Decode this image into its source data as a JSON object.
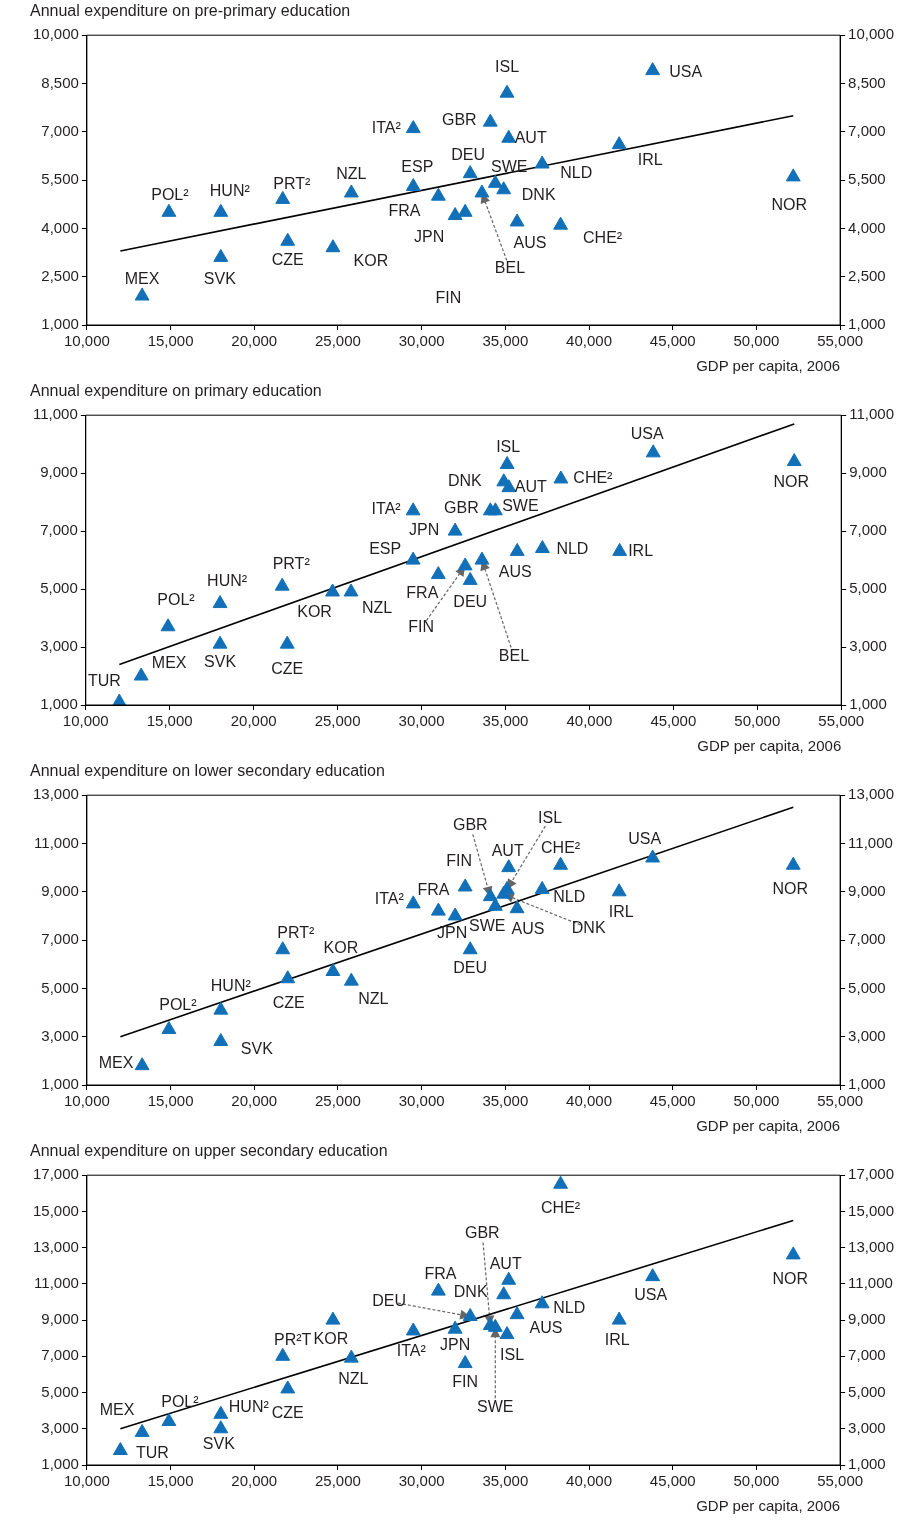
{
  "chart_data": [
    {
      "type": "scatter",
      "title": "Annual expenditure on pre-primary education",
      "xlabel": "GDP per capita, 2006",
      "xlim": [
        10000,
        55000
      ],
      "xticks": [
        {
          "value": 10000,
          "label": "10,000"
        },
        {
          "value": 15000,
          "label": "15,000"
        },
        {
          "value": 20000,
          "label": "20,000"
        },
        {
          "value": 25000,
          "label": "25,000"
        },
        {
          "value": 30000,
          "label": "30,000"
        },
        {
          "value": 35000,
          "label": "35,000"
        },
        {
          "value": 40000,
          "label": "40,000"
        },
        {
          "value": 45000,
          "label": "45,000"
        },
        {
          "value": 50000,
          "label": "50,000"
        },
        {
          "value": 55000,
          "label": "55,000"
        }
      ],
      "ylim": [
        1000,
        10000
      ],
      "yticks": [
        {
          "value": 1000,
          "label": "1,000"
        },
        {
          "value": 2500,
          "label": "2,500"
        },
        {
          "value": 4000,
          "label": "4,000"
        },
        {
          "value": 5500,
          "label": "5,500"
        },
        {
          "value": 7000,
          "label": "7,000"
        },
        {
          "value": 8500,
          "label": "8,500"
        },
        {
          "value": 10000,
          "label": "10,000"
        }
      ],
      "y2lim": [
        1000,
        10000
      ],
      "y2ticks": [
        {
          "value": 1000,
          "label": "1,000"
        },
        {
          "value": 2500,
          "label": "2,500"
        },
        {
          "value": 4000,
          "label": "4,000"
        },
        {
          "value": 5500,
          "label": "5,500"
        },
        {
          "value": 7000,
          "label": "7,000"
        },
        {
          "value": 8500,
          "label": "8,500"
        },
        {
          "value": 10000,
          "label": "10,000"
        }
      ],
      "series": [
        {
          "marker": "triangle",
          "color": "#1270b8",
          "x": [
            13300,
            14900,
            18000,
            18000,
            21700,
            22000,
            24700,
            25800,
            29500,
            29500,
            31000,
            32000,
            32600,
            32900,
            33600,
            34100,
            34400,
            34900,
            35100,
            35200,
            35700,
            37200,
            38300,
            41800,
            43800,
            52200
          ],
          "values": [
            1900,
            4500,
            4500,
            3100,
            4900,
            3600,
            3400,
            5100,
            7100,
            5300,
            5000,
            4400,
            4500,
            5700,
            5100,
            7300,
            5400,
            5200,
            8200,
            6800,
            4200,
            6000,
            4100,
            6600,
            8900,
            5600
          ]
        },
        {
          "type": "line",
          "color": "#000000",
          "x": [
            12000,
            52200
          ],
          "values": [
            3300,
            7500
          ]
        }
      ],
      "annotations": [
        {
          "text": "MEX",
          "x": 13300,
          "y": 1900
        },
        {
          "text": "POL²",
          "x": 14900,
          "y": 4500
        },
        {
          "text": "HUN²",
          "x": 18000,
          "y": 4500
        },
        {
          "text": "SVK",
          "x": 18000,
          "y": 3100
        },
        {
          "text": "PRT²",
          "x": 21700,
          "y": 4900
        },
        {
          "text": "CZE",
          "x": 22000,
          "y": 3600
        },
        {
          "text": "KOR",
          "x": 24700,
          "y": 3400
        },
        {
          "text": "NZL",
          "x": 25800,
          "y": 5100
        },
        {
          "text": "ITA²",
          "x": 29500,
          "y": 7100
        },
        {
          "text": "ESP",
          "x": 29500,
          "y": 5300
        },
        {
          "text": "FRA",
          "x": 31000,
          "y": 5000
        },
        {
          "text": "JPN",
          "x": 32000,
          "y": 4400
        },
        "FIN",
        {
          "text": "DEU",
          "x": 32900,
          "y": 5700
        },
        {
          "text": "BEL",
          "x": 33600,
          "y": 5100
        },
        {
          "text": "GBR",
          "x": 34100,
          "y": 7300
        },
        {
          "text": "SWE",
          "x": 34400,
          "y": 5400
        },
        {
          "text": "DNK",
          "x": 34900,
          "y": 5200
        },
        {
          "text": "ISL",
          "x": 35100,
          "y": 8200
        },
        {
          "text": "AUT",
          "x": 35200,
          "y": 6800
        },
        {
          "text": "AUS",
          "x": 35700,
          "y": 4200
        },
        {
          "text": "NLD",
          "x": 37200,
          "y": 6000
        },
        {
          "text": "CHE²",
          "x": 38300,
          "y": 4100
        },
        {
          "text": "IRL",
          "x": 41800,
          "y": 6600
        },
        {
          "text": "USA",
          "x": 43800,
          "y": 8900
        },
        {
          "text": "NOR",
          "x": 52200,
          "y": 5600
        }
      ]
    },
    {
      "type": "scatter",
      "title": "Annual expenditure on primary education",
      "xlabel": "GDP per capita, 2006",
      "xlim": [
        10000,
        55000
      ],
      "xticks": [
        {
          "value": 10000,
          "label": "10,000"
        },
        {
          "value": 15000,
          "label": "15,000"
        },
        {
          "value": 20000,
          "label": "20,000"
        },
        {
          "value": 25000,
          "label": "25,000"
        },
        {
          "value": 30000,
          "label": "30,000"
        },
        {
          "value": 35000,
          "label": "35,000"
        },
        {
          "value": 40000,
          "label": "40,000"
        },
        {
          "value": 45000,
          "label": "45,000"
        },
        {
          "value": 50000,
          "label": "50,000"
        },
        {
          "value": 55000,
          "label": "55,000"
        }
      ],
      "ylim": [
        1000,
        11000
      ],
      "yticks": [
        {
          "value": 1000,
          "label": "1,000"
        },
        {
          "value": 3000,
          "label": "3,000"
        },
        {
          "value": 5000,
          "label": "5,000"
        },
        {
          "value": 7000,
          "label": "7,000"
        },
        {
          "value": 9000,
          "label": "9,000"
        },
        {
          "value": 11000,
          "label": "11,000"
        }
      ],
      "y2lim": [
        1000,
        11000
      ],
      "y2ticks": [
        {
          "value": 1000,
          "label": "1,000"
        },
        {
          "value": 3000,
          "label": "3,000"
        },
        {
          "value": 5000,
          "label": "5,000"
        },
        {
          "value": 7000,
          "label": "7,000"
        },
        {
          "value": 9000,
          "label": "9,000"
        },
        {
          "value": 11000,
          "label": "11,000"
        }
      ],
      "series": [
        {
          "marker": "triangle",
          "color": "#1270b8",
          "x": [
            12000,
            13300,
            14900,
            18000,
            18000,
            21700,
            22000,
            24700,
            25800,
            29500,
            29500,
            31000,
            32000,
            32600,
            32900,
            33600,
            34100,
            34400,
            34900,
            35100,
            35200,
            35700,
            37200,
            38300,
            41800,
            43800,
            52200
          ],
          "values": [
            1100,
            2000,
            3700,
            4500,
            3100,
            5100,
            3100,
            4900,
            4900,
            7700,
            6000,
            5500,
            7000,
            5800,
            5300,
            6000,
            7700,
            7700,
            8700,
            9300,
            8500,
            6300,
            6400,
            8800,
            6300,
            9700,
            9400
          ]
        },
        {
          "type": "line",
          "color": "#000000",
          "x": [
            12000,
            52200
          ],
          "values": [
            2400,
            10700
          ]
        }
      ],
      "annotations": [
        {
          "text": "TUR",
          "x": 12000,
          "y": 1100
        },
        {
          "text": "MEX",
          "x": 13300,
          "y": 2000
        },
        {
          "text": "POL²",
          "x": 14900,
          "y": 3700
        },
        {
          "text": "HUN²",
          "x": 18000,
          "y": 4500
        },
        {
          "text": "SVK",
          "x": 18000,
          "y": 3100
        },
        {
          "text": "PRT²",
          "x": 21700,
          "y": 5100
        },
        {
          "text": "CZE",
          "x": 22000,
          "y": 3100
        },
        {
          "text": "KOR",
          "x": 24700,
          "y": 4900
        },
        {
          "text": "NZL",
          "x": 25800,
          "y": 4900
        },
        {
          "text": "ITA²",
          "x": 29500,
          "y": 7700
        },
        {
          "text": "ESP",
          "x": 29500,
          "y": 6000
        },
        {
          "text": "FRA",
          "x": 31000,
          "y": 5500
        },
        {
          "text": "JPN",
          "x": 32000,
          "y": 7000
        },
        {
          "text": "FIN",
          "x": 32600,
          "y": 5800
        },
        {
          "text": "DEU",
          "x": 32900,
          "y": 5300
        },
        {
          "text": "BEL",
          "x": 33600,
          "y": 6000
        },
        {
          "text": "GBR",
          "x": 34100,
          "y": 7700
        },
        {
          "text": "SWE",
          "x": 34400,
          "y": 7700
        },
        {
          "text": "DNK",
          "x": 34900,
          "y": 8700
        },
        {
          "text": "ISL",
          "x": 35100,
          "y": 9300
        },
        {
          "text": "AUT",
          "x": 35200,
          "y": 8500
        },
        {
          "text": "AUS",
          "x": 35700,
          "y": 6300
        },
        {
          "text": "NLD",
          "x": 37200,
          "y": 6400
        },
        {
          "text": "CHE²",
          "x": 38300,
          "y": 8800
        },
        {
          "text": "IRL",
          "x": 41800,
          "y": 6300
        },
        {
          "text": "USA",
          "x": 43800,
          "y": 9700
        },
        {
          "text": "NOR",
          "x": 52200,
          "y": 9400
        }
      ]
    },
    {
      "type": "scatter",
      "title": "Annual expenditure on lower secondary education",
      "xlabel": "GDP per capita, 2006",
      "xlim": [
        10000,
        55000
      ],
      "xticks": [
        {
          "value": 10000,
          "label": "10,000"
        },
        {
          "value": 15000,
          "label": "15,000"
        },
        {
          "value": 20000,
          "label": "20,000"
        },
        {
          "value": 25000,
          "label": "25,000"
        },
        {
          "value": 30000,
          "label": "30,000"
        },
        {
          "value": 35000,
          "label": "35,000"
        },
        {
          "value": 40000,
          "label": "40,000"
        },
        {
          "value": 45000,
          "label": "45,000"
        },
        {
          "value": 50000,
          "label": "50,000"
        },
        {
          "value": 55000,
          "label": "55,000"
        }
      ],
      "ylim": [
        1000,
        13000
      ],
      "yticks": [
        {
          "value": 1000,
          "label": "1,000"
        },
        {
          "value": 3000,
          "label": "3,000"
        },
        {
          "value": 5000,
          "label": "5,000"
        },
        {
          "value": 7000,
          "label": "7,000"
        },
        {
          "value": 9000,
          "label": "9,000"
        },
        {
          "value": 11000,
          "label": "11,000"
        },
        {
          "value": 13000,
          "label": "13,000"
        }
      ],
      "y2lim": [
        1000,
        13000
      ],
      "y2ticks": [
        {
          "value": 1000,
          "label": "1,000"
        },
        {
          "value": 3000,
          "label": "3,000"
        },
        {
          "value": 5000,
          "label": "5,000"
        },
        {
          "value": 7000,
          "label": "7,000"
        },
        {
          "value": 9000,
          "label": "9,000"
        },
        {
          "value": 11000,
          "label": "11,000"
        },
        {
          "value": 13000,
          "label": "13,000"
        }
      ],
      "series": [
        {
          "marker": "triangle",
          "color": "#1270b8",
          "x": [
            13300,
            14900,
            18000,
            18000,
            21700,
            22000,
            24700,
            25800,
            29500,
            31000,
            32000,
            32600,
            32900,
            34100,
            34400,
            34900,
            35100,
            35200,
            35700,
            37200,
            38300,
            41800,
            43800,
            52200
          ],
          "values": [
            1800,
            3300,
            4100,
            2800,
            6600,
            5400,
            5700,
            5300,
            8500,
            8200,
            8000,
            9200,
            6600,
            8800,
            8400,
            8900,
            9100,
            10000,
            8300,
            9100,
            10100,
            9000,
            10400,
            10100
          ]
        },
        {
          "type": "line",
          "color": "#000000",
          "x": [
            12000,
            52200
          ],
          "values": [
            3000,
            12500
          ]
        }
      ],
      "annotations": [
        {
          "text": "MEX",
          "x": 13300,
          "y": 1800
        },
        {
          "text": "POL²",
          "x": 14900,
          "y": 3300
        },
        {
          "text": "HUN²",
          "x": 18000,
          "y": 4100
        },
        {
          "text": "SVK",
          "x": 18000,
          "y": 2800
        },
        {
          "text": "PRT²",
          "x": 21700,
          "y": 6600
        },
        {
          "text": "CZE",
          "x": 22000,
          "y": 5400
        },
        {
          "text": "KOR",
          "x": 24700,
          "y": 5700
        },
        {
          "text": "NZL",
          "x": 25800,
          "y": 5300
        },
        {
          "text": "ITA²",
          "x": 29500,
          "y": 8500
        },
        {
          "text": "FRA",
          "x": 31000,
          "y": 8200
        },
        {
          "text": "JPN",
          "x": 32000,
          "y": 8000
        },
        {
          "text": "FIN",
          "x": 32600,
          "y": 9200
        },
        {
          "text": "DEU",
          "x": 32900,
          "y": 6600
        },
        {
          "text": "GBR",
          "x": 34100,
          "y": 8800
        },
        {
          "text": "SWE",
          "x": 34400,
          "y": 8400
        },
        {
          "text": "DNK",
          "x": 34900,
          "y": 8900
        },
        {
          "text": "ISL",
          "x": 35100,
          "y": 9100
        },
        {
          "text": "AUT",
          "x": 35200,
          "y": 10000
        },
        {
          "text": "AUS",
          "x": 35700,
          "y": 8300
        },
        {
          "text": "NLD",
          "x": 37200,
          "y": 9100
        },
        {
          "text": "CHE²",
          "x": 38300,
          "y": 10100
        },
        {
          "text": "IRL",
          "x": 41800,
          "y": 9000
        },
        {
          "text": "USA",
          "x": 43800,
          "y": 10400
        },
        {
          "text": "NOR",
          "x": 52200,
          "y": 10100
        }
      ]
    },
    {
      "type": "scatter",
      "title": "Annual expenditure on upper secondary education",
      "xlabel": "GDP per capita, 2006",
      "xlim": [
        10000,
        55000
      ],
      "xticks": [
        {
          "value": 10000,
          "label": "10,000"
        },
        {
          "value": 15000,
          "label": "15,000"
        },
        {
          "value": 20000,
          "label": "20,000"
        },
        {
          "value": 25000,
          "label": "25,000"
        },
        {
          "value": 30000,
          "label": "30,000"
        },
        {
          "value": 35000,
          "label": "35,000"
        },
        {
          "value": 40000,
          "label": "40,000"
        },
        {
          "value": 45000,
          "label": "45,000"
        },
        {
          "value": 50000,
          "label": "50,000"
        },
        {
          "value": 55000,
          "label": "55,000"
        }
      ],
      "ylim": [
        1000,
        17000
      ],
      "yticks": [
        {
          "value": 1000,
          "label": "1,000"
        },
        {
          "value": 3000,
          "label": "3,000"
        },
        {
          "value": 5000,
          "label": "5,000"
        },
        {
          "value": 7000,
          "label": "7,000"
        },
        {
          "value": 9000,
          "label": "9,000"
        },
        {
          "value": 11000,
          "label": "11,000"
        },
        {
          "value": 13000,
          "label": "13,000"
        },
        {
          "value": 15000,
          "label": "15,000"
        },
        {
          "value": 17000,
          "label": "17,000"
        }
      ],
      "y2lim": [
        1000,
        17000
      ],
      "y2ticks": [
        {
          "value": 1000,
          "label": "1,000"
        },
        {
          "value": 3000,
          "label": "3,000"
        },
        {
          "value": 5000,
          "label": "5,000"
        },
        {
          "value": 7000,
          "label": "7,000"
        },
        {
          "value": 9000,
          "label": "9,000"
        },
        {
          "value": 11000,
          "label": "11,000"
        },
        {
          "value": 13000,
          "label": "13,000"
        },
        {
          "value": 15000,
          "label": "15,000"
        },
        {
          "value": 17000,
          "label": "17,000"
        }
      ],
      "series": [
        {
          "marker": "triangle",
          "color": "#1270b8",
          "x": [
            12000,
            13300,
            14900,
            18000,
            18000,
            21700,
            22000,
            24700,
            25800,
            29500,
            31000,
            32000,
            32600,
            32900,
            34100,
            34400,
            34900,
            35100,
            35200,
            35700,
            37200,
            38300,
            41800,
            43800,
            52200
          ],
          "values": [
            1800,
            2800,
            3400,
            3800,
            3000,
            7000,
            5200,
            9000,
            6900,
            8400,
            10600,
            8500,
            6600,
            9200,
            8700,
            8600,
            10400,
            8200,
            11200,
            9300,
            9900,
            16500,
            9000,
            11400,
            12600
          ]
        },
        {
          "type": "line",
          "color": "#000000",
          "x": [
            12000,
            52200
          ],
          "values": [
            3000,
            14500
          ]
        }
      ],
      "annotations": [
        {
          "text": "TUR",
          "x": 12000,
          "y": 1800
        },
        {
          "text": "MEX",
          "x": 13300,
          "y": 2800
        },
        {
          "text": "POL²",
          "x": 14900,
          "y": 3400
        },
        {
          "text": "HUN²",
          "x": 18000,
          "y": 3800
        },
        {
          "text": "SVK",
          "x": 18000,
          "y": 3000
        },
        {
          "text": "PR²T",
          "x": 21700,
          "y": 7000
        },
        {
          "text": "CZE",
          "x": 22000,
          "y": 5200
        },
        {
          "text": "KOR",
          "x": 24700,
          "y": 9000
        },
        {
          "text": "NZL",
          "x": 25800,
          "y": 6900
        },
        {
          "text": "ITA²",
          "x": 29500,
          "y": 8400
        },
        {
          "text": "FRA",
          "x": 31000,
          "y": 10600
        },
        {
          "text": "JPN",
          "x": 32000,
          "y": 8500
        },
        {
          "text": "FIN",
          "x": 32600,
          "y": 6600
        },
        {
          "text": "DEU",
          "x": 32900,
          "y": 9200
        },
        {
          "text": "GBR",
          "x": 34100,
          "y": 8700
        },
        {
          "text": "SWE",
          "x": 34400,
          "y": 8600
        },
        {
          "text": "DNK",
          "x": 34900,
          "y": 10400
        },
        {
          "text": "ISL",
          "x": 35100,
          "y": 8200
        },
        {
          "text": "AUT",
          "x": 35200,
          "y": 11200
        },
        {
          "text": "AUS",
          "x": 35700,
          "y": 9300
        },
        {
          "text": "NLD",
          "x": 37200,
          "y": 9900
        },
        {
          "text": "CHE²",
          "x": 38300,
          "y": 16500
        },
        {
          "text": "IRL",
          "x": 41800,
          "y": 9000
        },
        {
          "text": "USA",
          "x": 43800,
          "y": 11400
        },
        {
          "text": "NOR",
          "x": 52200,
          "y": 12600
        }
      ]
    }
  ]
}
